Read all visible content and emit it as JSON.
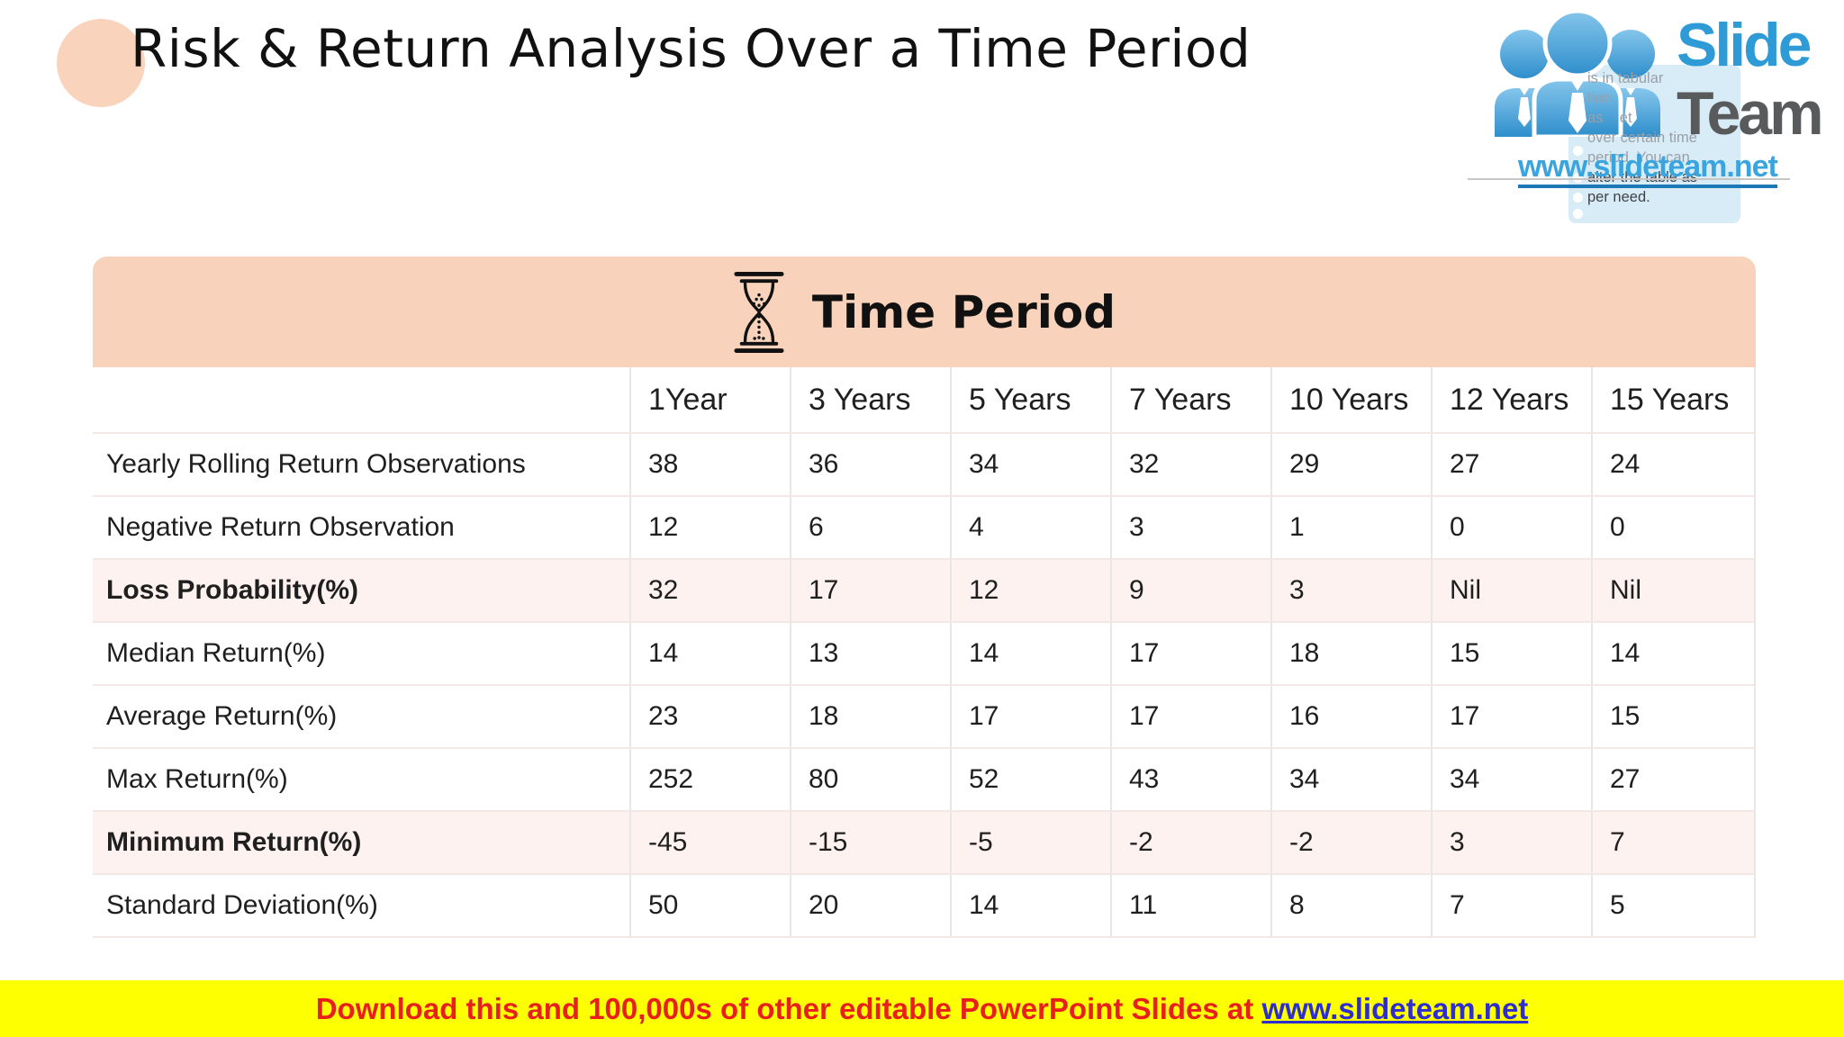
{
  "title": "Risk & Return Analysis Over a Time Period",
  "logo": {
    "slide": "Slide",
    "team": "Team",
    "url": "www.slideteam.net",
    "people_icon": "people-icon",
    "note_lines": [
      "is in tabular",
      "tion",
      "as    et",
      "over certain time",
      "period. You can",
      "alter the table as",
      "per need."
    ]
  },
  "table": {
    "header_icon": "hourglass-icon",
    "header_title": "Time Period",
    "columns": [
      "1Year",
      "3 Years",
      "5 Years",
      "7 Years",
      "10 Years",
      "12 Years",
      "15 Years"
    ],
    "rows": [
      {
        "label": "Yearly Rolling Return Observations",
        "values": [
          "38",
          "36",
          "34",
          "32",
          "29",
          "27",
          "24"
        ],
        "highlight": false
      },
      {
        "label": "Negative Return Observation",
        "values": [
          "12",
          "6",
          "4",
          "3",
          "1",
          "0",
          "0"
        ],
        "highlight": false
      },
      {
        "label": "Loss Probability(%)",
        "values": [
          "32",
          "17",
          "12",
          "9",
          "3",
          "Nil",
          "Nil"
        ],
        "highlight": true
      },
      {
        "label": "Median Return(%)",
        "values": [
          "14",
          "13",
          "14",
          "17",
          "18",
          "15",
          "14"
        ],
        "highlight": false
      },
      {
        "label": "Average Return(%)",
        "values": [
          "23",
          "18",
          "17",
          "17",
          "16",
          "17",
          "15"
        ],
        "highlight": false
      },
      {
        "label": "Max Return(%)",
        "values": [
          "252",
          "80",
          "52",
          "43",
          "34",
          "34",
          "27"
        ],
        "highlight": false
      },
      {
        "label": "Minimum Return(%)",
        "values": [
          "-45",
          "-15",
          "-5",
          "-2",
          "-2",
          "3",
          "7"
        ],
        "highlight": true
      },
      {
        "label": "Standard Deviation(%)",
        "values": [
          "50",
          "20",
          "14",
          "11",
          "8",
          "7",
          "5"
        ],
        "highlight": false
      }
    ]
  },
  "footer": {
    "text": "Download this and 100,000s of other editable PowerPoint Slides at ",
    "link": "www.slideteam.net"
  },
  "colors": {
    "accent_peach": "#f8d2ba",
    "title_circle_peach": "#fad3bc",
    "row_highlight_pink": "#fdf2ef",
    "banner_yellow": "#feff00",
    "banner_red": "#e8201c",
    "banner_link_blue": "#2d2dd0",
    "logo_blue": "#2e9bd6",
    "logo_gray": "#595a5c",
    "url_blue": "#39a4de",
    "note_blue": "#d8ecf8"
  }
}
